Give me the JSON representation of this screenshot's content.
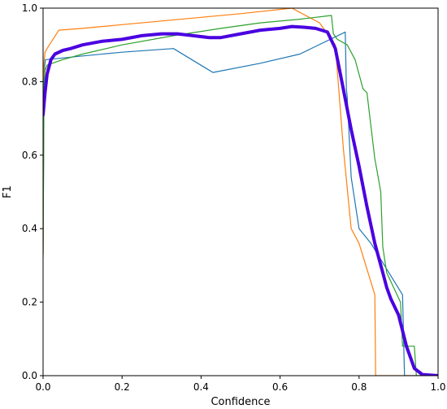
{
  "chart_data": {
    "type": "line",
    "title": "",
    "xlabel": "Confidence",
    "ylabel": "F1",
    "xlim": [
      0.0,
      1.0
    ],
    "ylim": [
      0.0,
      1.0
    ],
    "xticks": [
      "0.0",
      "0.2",
      "0.4",
      "0.6",
      "0.8",
      "1.0"
    ],
    "yticks": [
      "0.0",
      "0.2",
      "0.4",
      "0.6",
      "0.8",
      "1.0"
    ],
    "grid": false,
    "legend": false,
    "series": [
      {
        "color": "#1f77b4",
        "width": 1.2,
        "x": [
          0.0,
          0.002,
          0.004,
          0.006,
          0.01,
          0.1,
          0.2,
          0.33,
          0.43,
          0.55,
          0.65,
          0.765,
          0.768,
          0.77,
          0.78,
          0.8,
          0.83,
          0.87,
          0.91,
          0.915,
          0.915,
          1.0
        ],
        "y": [
          0.33,
          0.7,
          0.84,
          0.86,
          0.86,
          0.87,
          0.88,
          0.89,
          0.825,
          0.85,
          0.875,
          0.935,
          0.78,
          0.76,
          0.54,
          0.4,
          0.36,
          0.29,
          0.22,
          0.0,
          0.0,
          0.0
        ]
      },
      {
        "color": "#ff7f0e",
        "width": 1.2,
        "x": [
          0.0,
          0.002,
          0.005,
          0.01,
          0.04,
          0.1,
          0.2,
          0.3,
          0.4,
          0.5,
          0.63,
          0.7,
          0.74,
          0.76,
          0.78,
          0.8,
          0.84,
          0.842,
          1.0
        ],
        "y": [
          0.32,
          0.85,
          0.88,
          0.89,
          0.94,
          0.945,
          0.955,
          0.965,
          0.975,
          0.985,
          1.0,
          0.96,
          0.9,
          0.62,
          0.4,
          0.36,
          0.22,
          0.0,
          0.0
        ]
      },
      {
        "color": "#2ca02c",
        "width": 1.2,
        "x": [
          0.0,
          0.002,
          0.005,
          0.01,
          0.05,
          0.1,
          0.2,
          0.33,
          0.45,
          0.55,
          0.65,
          0.73,
          0.735,
          0.745,
          0.77,
          0.79,
          0.81,
          0.82,
          0.84,
          0.845,
          0.855,
          0.86,
          0.87,
          0.905,
          0.91,
          0.94,
          0.945,
          1.0
        ],
        "y": [
          0.33,
          0.8,
          0.83,
          0.845,
          0.86,
          0.875,
          0.9,
          0.925,
          0.945,
          0.96,
          0.97,
          0.98,
          0.93,
          0.915,
          0.9,
          0.86,
          0.78,
          0.77,
          0.59,
          0.56,
          0.5,
          0.35,
          0.28,
          0.2,
          0.08,
          0.08,
          0.0,
          0.0
        ]
      },
      {
        "color": "#4a00e0",
        "width": 4,
        "x": [
          0.0,
          0.005,
          0.01,
          0.02,
          0.03,
          0.05,
          0.07,
          0.1,
          0.15,
          0.2,
          0.25,
          0.3,
          0.34,
          0.38,
          0.42,
          0.45,
          0.5,
          0.55,
          0.6,
          0.63,
          0.66,
          0.69,
          0.72,
          0.74,
          0.76,
          0.78,
          0.8,
          0.82,
          0.84,
          0.86,
          0.87,
          0.88,
          0.9,
          0.92,
          0.94,
          0.96,
          1.0
        ],
        "y": [
          0.71,
          0.77,
          0.82,
          0.86,
          0.875,
          0.885,
          0.89,
          0.9,
          0.91,
          0.915,
          0.925,
          0.93,
          0.93,
          0.925,
          0.92,
          0.92,
          0.93,
          0.94,
          0.945,
          0.95,
          0.948,
          0.945,
          0.935,
          0.89,
          0.78,
          0.67,
          0.57,
          0.46,
          0.36,
          0.28,
          0.24,
          0.21,
          0.165,
          0.08,
          0.02,
          0.003,
          0.0
        ]
      }
    ]
  }
}
